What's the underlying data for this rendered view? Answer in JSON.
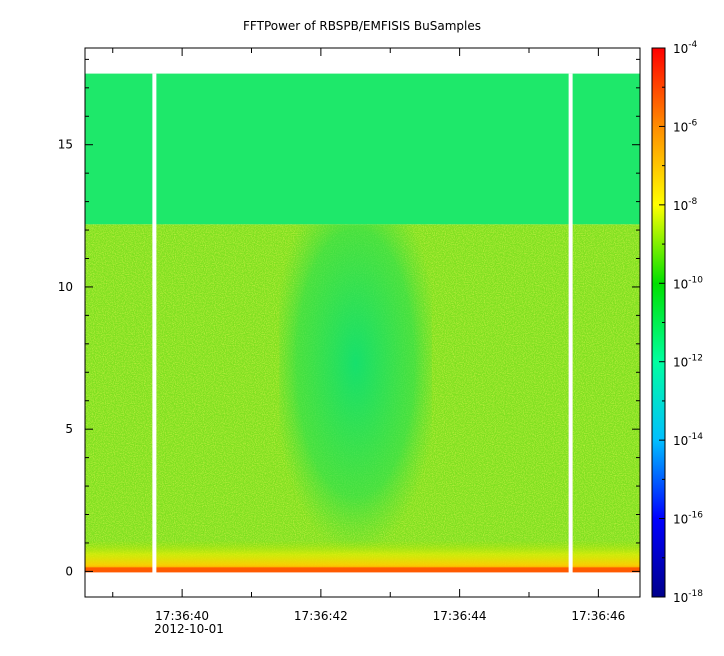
{
  "chart_data": {
    "type": "heatmap",
    "title": "FFTPower of RBSPB/EMFISIS  BuSamples",
    "xlabel": "",
    "ylabel": "",
    "x_ticks": [
      {
        "value": "17:36:40",
        "t": 40
      },
      {
        "value": "17:36:42",
        "t": 42
      },
      {
        "value": "17:36:44",
        "t": 44
      },
      {
        "value": "17:36:46",
        "t": 46
      }
    ],
    "x_date_label": "2012-10-01",
    "x_minor_ticks": [
      39,
      41,
      43,
      45
    ],
    "xlim": [
      38.6,
      46.6
    ],
    "y_ticks": [
      0,
      5,
      10,
      15
    ],
    "ylim": [
      -0.9,
      18.4
    ],
    "frequency_max": 17.5,
    "data_gaps": [
      39.6,
      45.6
    ],
    "colorbar": {
      "scale": "log",
      "range": [
        1e-18,
        0.0001
      ],
      "ticks": [
        {
          "base": "10",
          "exp": "-4",
          "value": 0.0001
        },
        {
          "base": "10",
          "exp": "-6",
          "value": 1e-06
        },
        {
          "base": "10",
          "exp": "-8",
          "value": 1e-08
        },
        {
          "base": "10",
          "exp": "-10",
          "value": 1e-10
        },
        {
          "base": "10",
          "exp": "-12",
          "value": 1e-12
        },
        {
          "base": "10",
          "exp": "-14",
          "value": 1e-14
        },
        {
          "base": "10",
          "exp": "-16",
          "value": 1e-16
        },
        {
          "base": "10",
          "exp": "-18",
          "value": 1e-18
        }
      ],
      "colors": [
        "#00008b",
        "#0000ff",
        "#00bfff",
        "#00ffa0",
        "#00e000",
        "#ffff00",
        "#ff8c00",
        "#ff0000"
      ]
    }
  }
}
